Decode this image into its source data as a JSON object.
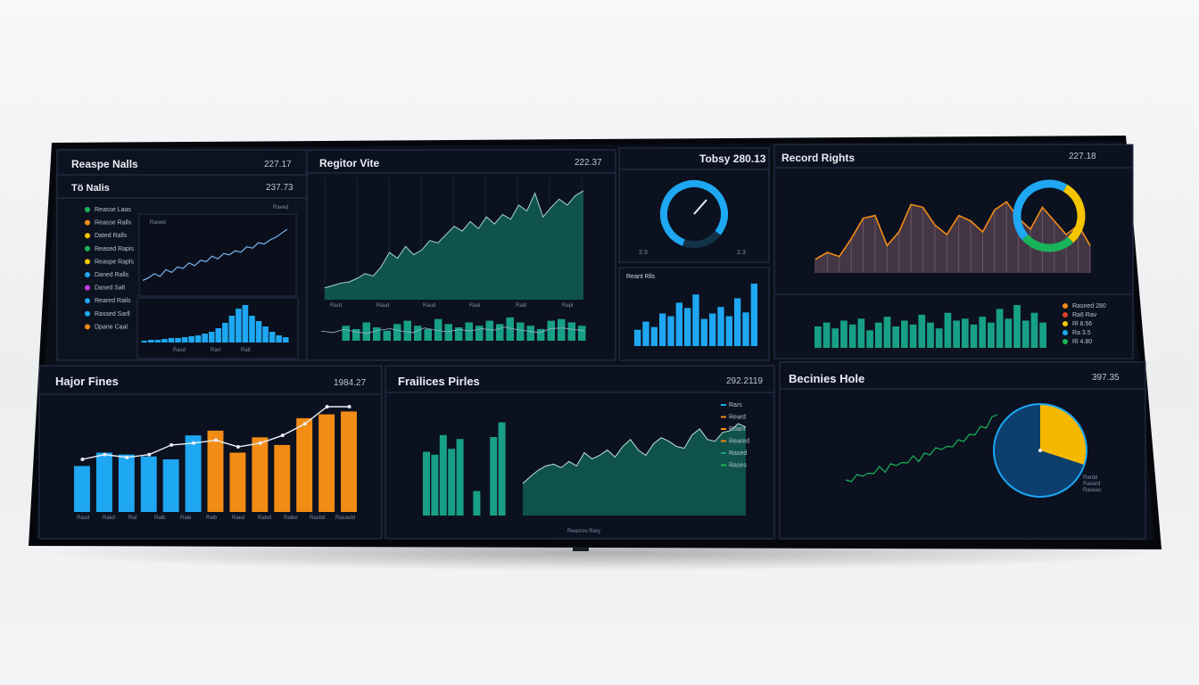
{
  "colors": {
    "accent_blue": "#1ea7f2",
    "accent_teal": "#17a085",
    "accent_orange": "#f28c14",
    "accent_yellow": "#f5c500",
    "accent_green": "#19b45a",
    "screen_bg": "#0b0f1a"
  },
  "panels": {
    "p1": {
      "title": "Reaspe Nalls",
      "value": "227.17",
      "sub_title": "Tö Nalis",
      "sub_value": "237.73",
      "legend": [
        "Reasse Laas",
        "Reasse Ralls",
        "Dated Ralls",
        "Reased Rapis",
        "Reaspe Rapls",
        "Daned Ralls",
        "Dased Salt",
        "Reared Rails",
        "Rassed Sarll",
        "Dpane Caal"
      ],
      "legend_colors": [
        "#19b45a",
        "#f28c14",
        "#f5c500",
        "#19b45a",
        "#f5c500",
        "#1ea7f2",
        "#c03ce0",
        "#1ea7f2",
        "#1ea7f2",
        "#f28c14"
      ],
      "chart_label": "Raned",
      "chart_corner": "Raved",
      "bar_labels": [
        "Rasd",
        "Rarr",
        "Ratl"
      ]
    },
    "p2": {
      "title": "Regitor Vite",
      "value": "222.37",
      "x_labels": [
        "Rard",
        "Raud",
        "Raud",
        "Raal",
        "Rald",
        "Rapl"
      ]
    },
    "p3": {
      "title": "Tobsy 280.13",
      "gauge_left": "2.3",
      "gauge_right": "2.3",
      "bar_title": "Reant Rlls"
    },
    "p4": {
      "title": "Record Rights",
      "value": "227.18",
      "legend": [
        "Rasned 280",
        "Ra6 Rav",
        "Rl 8.56",
        "Ra 3.5",
        "Rl 4.80"
      ],
      "legend_colors": [
        "#f28c14",
        "#e0402a",
        "#f5c500",
        "#1ea7f2",
        "#19b45a"
      ]
    },
    "p5": {
      "title": "Hajor Fines",
      "value": "1984.27",
      "x_labels": [
        "Raud",
        "Rakd",
        "Ral",
        "Ralb",
        "Rale",
        "Ralb",
        "Raed",
        "Ralvd",
        "Ralbe",
        "Rasbd",
        "Rasaubl"
      ]
    },
    "p6": {
      "title": "Frailices Pirles",
      "value": "292.2119",
      "legend": [
        "Rars",
        "Reard",
        "Rdanl",
        "Reared",
        "Rased",
        "Rases"
      ],
      "legend_colors": [
        "#1ea7f2",
        "#f28c14",
        "#f28c14",
        "#f28c14",
        "#17a085",
        "#19b45a"
      ],
      "x_caption": "Reacrou Rary"
    },
    "p7": {
      "title": "Becinies Hole",
      "value": "397.35",
      "pie_legend": [
        "Rardd",
        "Raserd",
        "Raseas"
      ]
    }
  },
  "chart_data": [
    {
      "type": "line",
      "title": "Tö Nalis",
      "values": [
        20,
        22,
        25,
        23,
        28,
        26,
        30,
        29,
        33,
        31,
        35,
        34,
        38,
        36,
        40,
        39,
        42,
        41,
        45,
        44,
        48,
        47,
        50,
        52,
        55,
        58
      ]
    },
    {
      "type": "bar",
      "values": [
        2,
        3,
        3,
        4,
        5,
        5,
        6,
        7,
        8,
        10,
        12,
        16,
        22,
        30,
        38,
        42,
        30,
        24,
        18,
        12,
        8,
        6
      ]
    },
    {
      "type": "area",
      "title": "Regitor Vite",
      "values": [
        10,
        12,
        14,
        15,
        18,
        22,
        20,
        28,
        40,
        35,
        45,
        38,
        42,
        50,
        48,
        55,
        62,
        58,
        66,
        60,
        70,
        64,
        72,
        68,
        80,
        75,
        90,
        70,
        78,
        85,
        80,
        88,
        92
      ]
    },
    {
      "type": "bar",
      "values": [
        18,
        14,
        22,
        16,
        12,
        20,
        24,
        18,
        14,
        26,
        20,
        16,
        22,
        18,
        24,
        20,
        28,
        22,
        18,
        14,
        24,
        26,
        22,
        18
      ]
    },
    {
      "type": "gauge",
      "value": 0.8
    },
    {
      "type": "bar",
      "values": [
        30,
        45,
        35,
        60,
        55,
        80,
        70,
        95,
        50,
        60,
        72,
        55,
        88,
        62,
        115
      ]
    },
    {
      "type": "area",
      "title": "Record Rights",
      "values": [
        30,
        35,
        32,
        45,
        60,
        62,
        40,
        50,
        70,
        68,
        55,
        48,
        62,
        58,
        50,
        66,
        72,
        60,
        52,
        68,
        58,
        48,
        55,
        40
      ]
    },
    {
      "type": "pie",
      "values": [
        0.6,
        0.25,
        0.15
      ]
    },
    {
      "type": "bar",
      "values": [
        22,
        26,
        20,
        28,
        24,
        30,
        18,
        26,
        32,
        22,
        28,
        24,
        34,
        26,
        20,
        36,
        28,
        30,
        24,
        32,
        26,
        40,
        30,
        44,
        28,
        36,
        26
      ]
    },
    {
      "type": "bar",
      "values": [
        48,
        62,
        60,
        58,
        55,
        80,
        85,
        62,
        78,
        70,
        98,
        102,
        105
      ],
      "line": [
        55,
        60,
        57,
        60,
        70,
        72,
        75,
        68,
        72,
        80,
        92,
        110,
        110
      ]
    },
    {
      "type": "bar",
      "values": [
        65,
        62,
        82,
        68,
        78,
        0,
        25,
        0,
        80,
        95,
        0,
        0
      ]
    },
    {
      "type": "area",
      "values": [
        20,
        28,
        35,
        40,
        42,
        38,
        45,
        40,
        55,
        48,
        52,
        58,
        50,
        62,
        70,
        58,
        52,
        65,
        72,
        68,
        62,
        60,
        75,
        82,
        70,
        68,
        78,
        80,
        88,
        84
      ]
    },
    {
      "type": "line",
      "title": "Becinies Hole",
      "values": [
        8,
        10,
        12,
        14,
        13,
        16,
        18,
        17,
        20,
        22,
        21,
        24,
        26,
        25,
        28,
        30,
        32,
        34,
        33,
        36,
        38,
        40,
        42,
        45,
        48,
        50,
        55,
        60
      ]
    },
    {
      "type": "pie",
      "values": [
        0.3,
        0.7
      ]
    }
  ]
}
